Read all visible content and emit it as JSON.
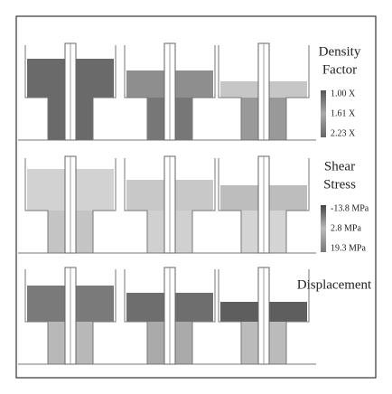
{
  "rows": [
    {
      "title": [
        "Density",
        "Factor"
      ],
      "scale": [
        "1.00 X",
        "1.61 X",
        "2.23 X"
      ]
    },
    {
      "title": [
        "Shear",
        "Stress"
      ],
      "scale": [
        "-13.8 MPa",
        "2.8 MPa",
        "19.3 MPa"
      ]
    },
    {
      "title": [
        "Displacement"
      ]
    }
  ]
}
